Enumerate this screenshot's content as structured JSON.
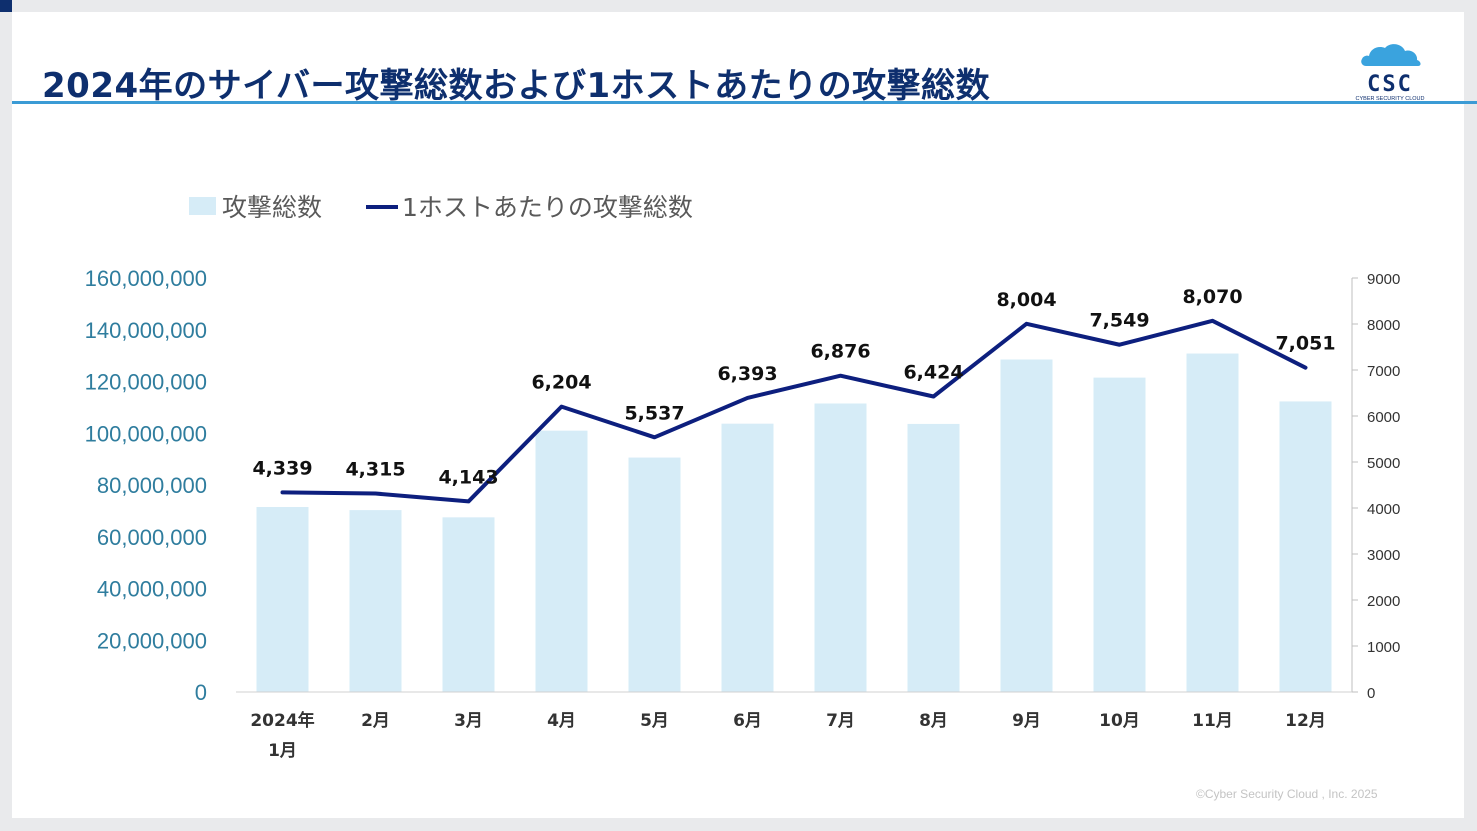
{
  "page": {
    "title": "2024年のサイバー攻撃総数および1ホストあたりの攻撃総数",
    "logo_text": "CSC",
    "logo_subtext": "CYBER SECURITY CLOUD",
    "copyright": "©Cyber Security Cloud , Inc. 2025"
  },
  "colors": {
    "bar": "#d6ecf7",
    "line": "#0d1f7e",
    "title": "#0e2f6e",
    "accent_rule": "#3b9bd5",
    "left_axis_text": "#2f7d9e"
  },
  "chart_data": {
    "type": "bar",
    "categories": [
      [
        "2024年",
        "1月"
      ],
      [
        "2月"
      ],
      [
        "3月"
      ],
      [
        "4月"
      ],
      [
        "5月"
      ],
      [
        "6月"
      ],
      [
        "7月"
      ],
      [
        "8月"
      ],
      [
        "9月"
      ],
      [
        "10月"
      ],
      [
        "11月"
      ],
      [
        "12月"
      ]
    ],
    "series": [
      {
        "name": "攻撃総数",
        "type": "bar",
        "axis": "left",
        "values": [
          71500000,
          70300000,
          67500000,
          101000000,
          90600000,
          103700000,
          111500000,
          103600000,
          128500000,
          121500000,
          130800000,
          112300000
        ]
      },
      {
        "name": "1ホストあたりの攻撃総数",
        "type": "line",
        "axis": "right",
        "values": [
          4339,
          4315,
          4143,
          6204,
          5537,
          6393,
          6876,
          6424,
          8004,
          7549,
          8070,
          7051
        ],
        "labels": [
          "4,339",
          "4,315",
          "4,143",
          "6,204",
          "5,537",
          "6,393",
          "6,876",
          "6,424",
          "8,004",
          "7,549",
          "8,070",
          "7,051"
        ]
      }
    ],
    "left_axis": {
      "ylim": [
        0,
        160000000
      ],
      "ticks": [
        0,
        20000000,
        40000000,
        60000000,
        80000000,
        100000000,
        120000000,
        140000000,
        160000000
      ],
      "tick_labels": [
        "0",
        "20,000,000",
        "40,000,000",
        "60,000,000",
        "80,000,000",
        "100,000,000",
        "120,000,000",
        "140,000,000",
        "160,000,000"
      ]
    },
    "right_axis": {
      "ylim": [
        0,
        9000
      ],
      "ticks": [
        0,
        1000,
        2000,
        3000,
        4000,
        5000,
        6000,
        7000,
        8000,
        9000
      ],
      "tick_labels": [
        "0",
        "1000",
        "2000",
        "3000",
        "4000",
        "5000",
        "6000",
        "7000",
        "8000",
        "9000"
      ]
    },
    "legend": {
      "position": "top-left",
      "entries": [
        "攻撃総数",
        "1ホストあたりの攻撃総数"
      ]
    },
    "grid": false
  }
}
